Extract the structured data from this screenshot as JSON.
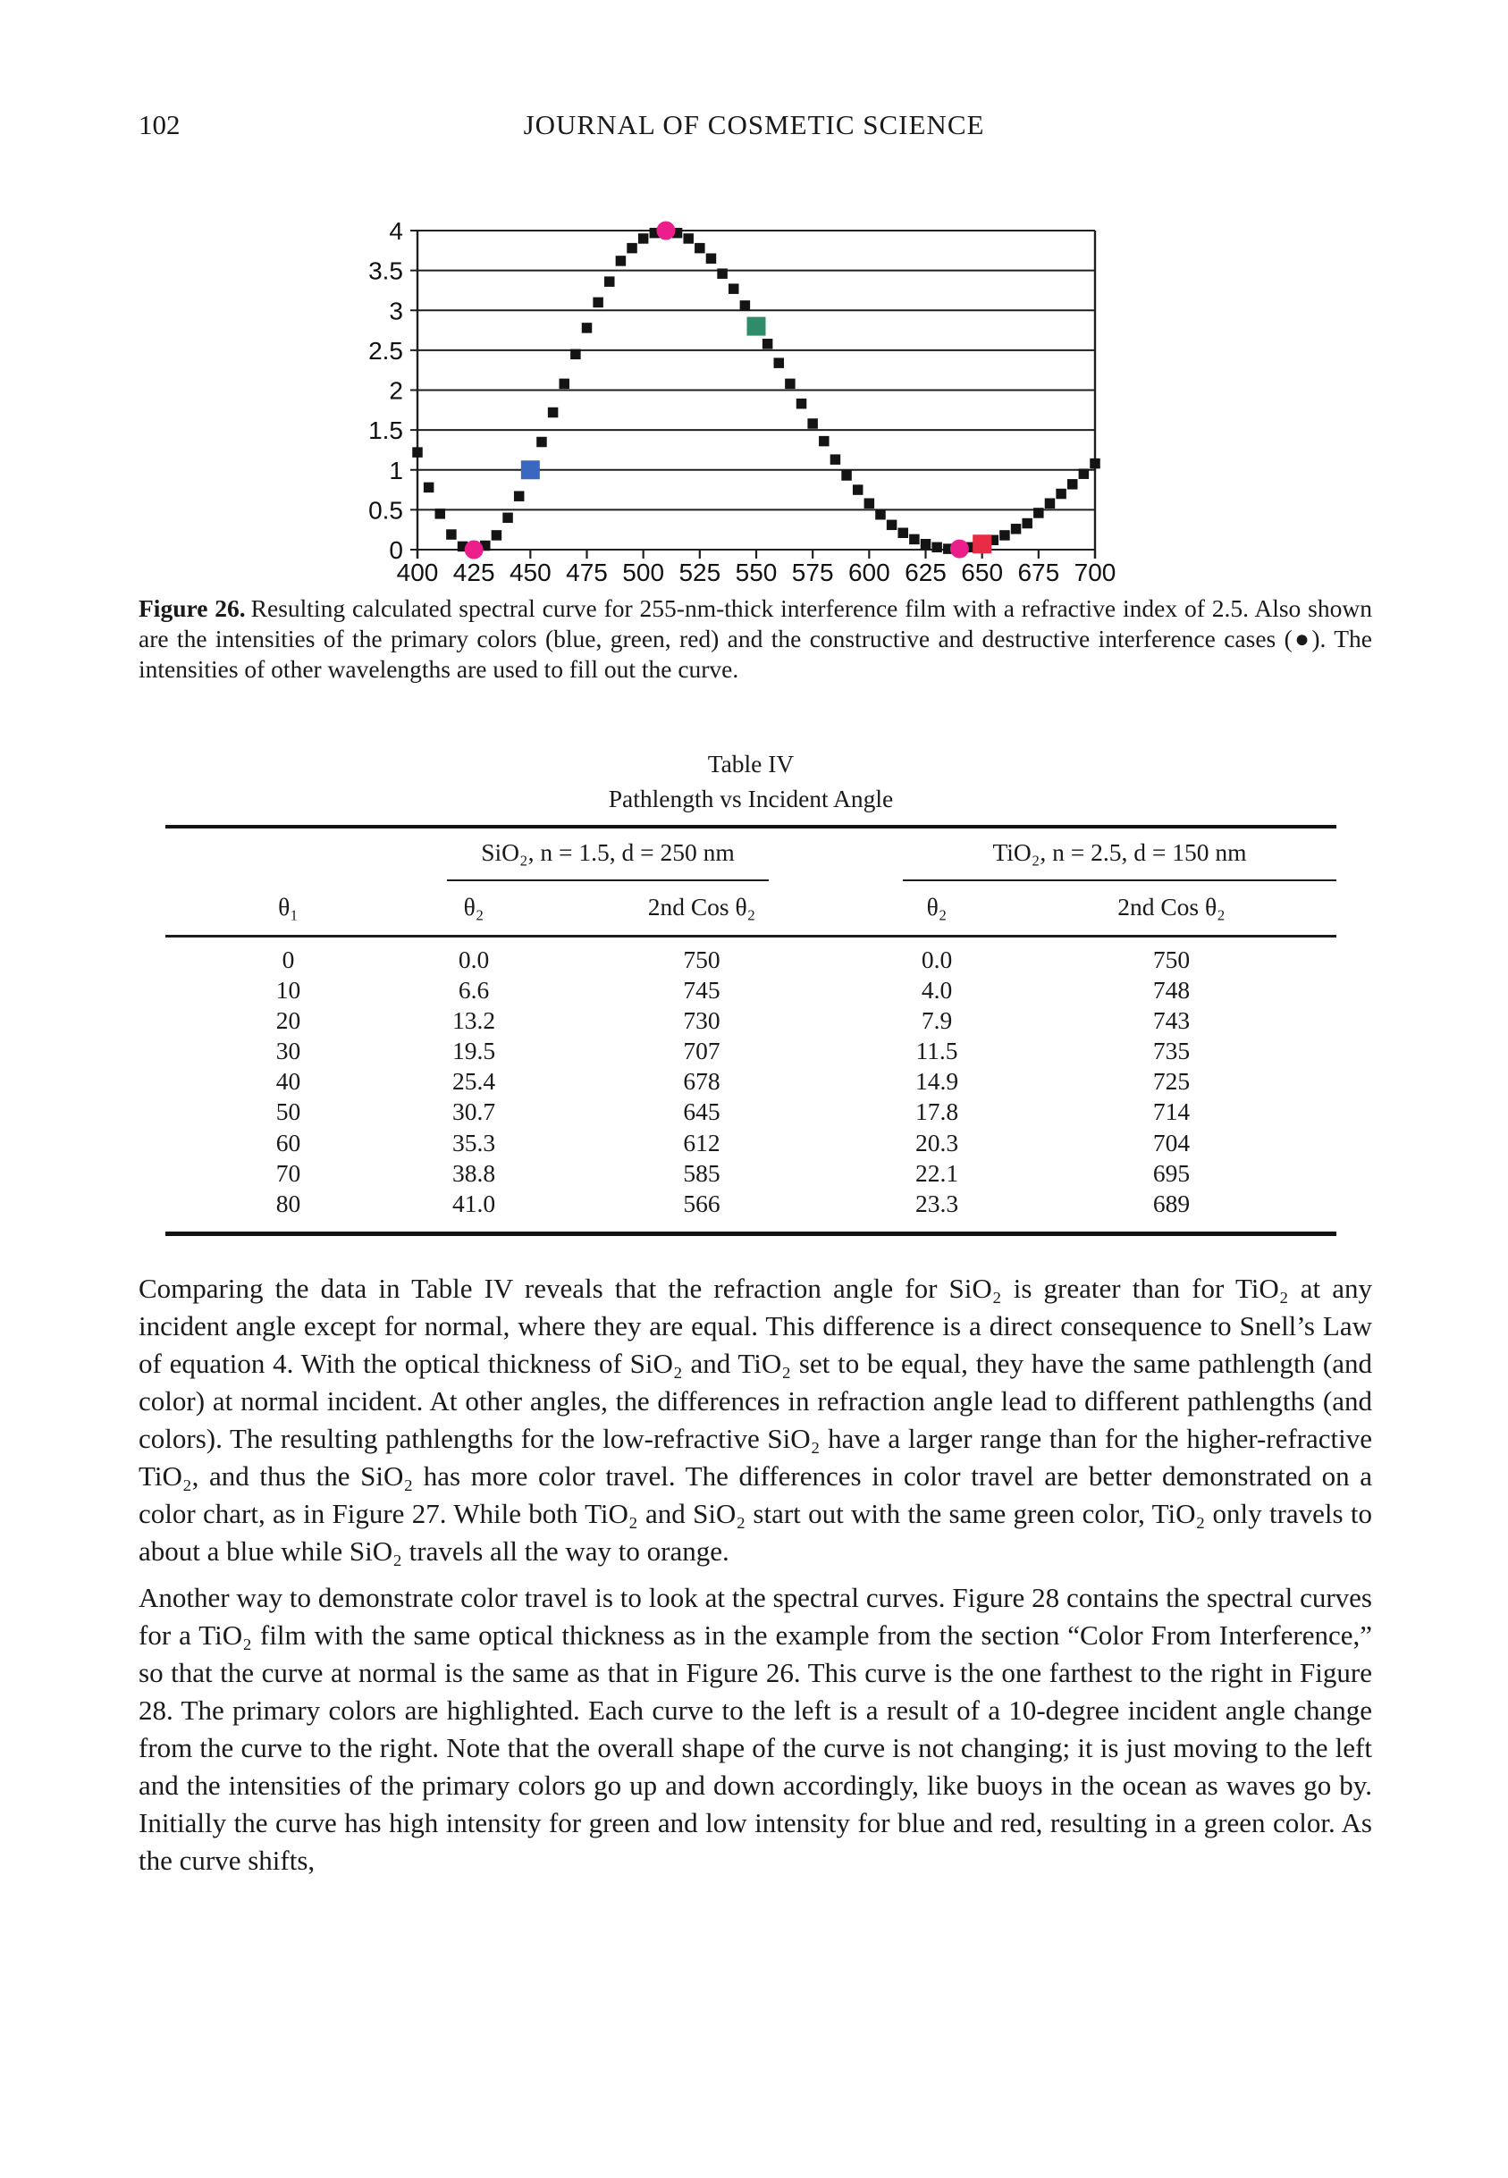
{
  "page": {
    "number": "102",
    "journal": "JOURNAL OF COSMETIC SCIENCE"
  },
  "chart_data": {
    "type": "scatter",
    "title": "",
    "xlabel": "",
    "ylabel": "",
    "xlim": [
      400,
      700
    ],
    "ylim": [
      0,
      4
    ],
    "grid": "horizontal",
    "legend": "none",
    "x_ticks": [
      400,
      425,
      450,
      475,
      500,
      525,
      550,
      575,
      600,
      625,
      650,
      675,
      700
    ],
    "x_tick_labels": [
      "400",
      "425",
      "450",
      "475",
      "500",
      "525",
      "550",
      "575",
      "600",
      "625",
      "650",
      "675",
      "700"
    ],
    "y_ticks": [
      0,
      0.5,
      1,
      1.5,
      2,
      2.5,
      3,
      3.5,
      4
    ],
    "y_tick_labels": [
      "0",
      "0.5",
      "1",
      "1.5",
      "2",
      "2.5",
      "3",
      "3.5",
      "4"
    ],
    "series": [
      {
        "name": "calculated spectral curve (255-nm film, n = 2.5)",
        "marker": "square",
        "color": "#141414",
        "points": [
          [
            400,
            1.22
          ],
          [
            405,
            0.78
          ],
          [
            410,
            0.45
          ],
          [
            415,
            0.19
          ],
          [
            420,
            0.04
          ],
          [
            425,
            0.0
          ],
          [
            430,
            0.05
          ],
          [
            435,
            0.18
          ],
          [
            440,
            0.4
          ],
          [
            445,
            0.67
          ],
          [
            450,
            1.0
          ],
          [
            455,
            1.35
          ],
          [
            460,
            1.72
          ],
          [
            465,
            2.08
          ],
          [
            470,
            2.45
          ],
          [
            475,
            2.78
          ],
          [
            480,
            3.1
          ],
          [
            485,
            3.36
          ],
          [
            490,
            3.62
          ],
          [
            495,
            3.78
          ],
          [
            500,
            3.9
          ],
          [
            505,
            3.97
          ],
          [
            510,
            4.0
          ],
          [
            515,
            3.97
          ],
          [
            520,
            3.9
          ],
          [
            525,
            3.78
          ],
          [
            530,
            3.65
          ],
          [
            535,
            3.46
          ],
          [
            540,
            3.27
          ],
          [
            545,
            3.06
          ],
          [
            550,
            2.8
          ],
          [
            555,
            2.58
          ],
          [
            560,
            2.34
          ],
          [
            565,
            2.08
          ],
          [
            570,
            1.83
          ],
          [
            575,
            1.58
          ],
          [
            580,
            1.36
          ],
          [
            585,
            1.13
          ],
          [
            590,
            0.93
          ],
          [
            595,
            0.75
          ],
          [
            600,
            0.58
          ],
          [
            605,
            0.44
          ],
          [
            610,
            0.31
          ],
          [
            615,
            0.21
          ],
          [
            620,
            0.13
          ],
          [
            625,
            0.07
          ],
          [
            630,
            0.03
          ],
          [
            635,
            0.01
          ],
          [
            640,
            0.01
          ],
          [
            645,
            0.03
          ],
          [
            650,
            0.07
          ],
          [
            655,
            0.12
          ],
          [
            660,
            0.18
          ],
          [
            665,
            0.26
          ],
          [
            670,
            0.33
          ],
          [
            675,
            0.46
          ],
          [
            680,
            0.58
          ],
          [
            685,
            0.7
          ],
          [
            690,
            0.82
          ],
          [
            695,
            0.95
          ],
          [
            700,
            1.08
          ]
        ]
      }
    ],
    "highlights": [
      {
        "x": 425,
        "y": 0.0,
        "marker": "circle",
        "color": "#ec1e8c",
        "role": "destructive interference"
      },
      {
        "x": 450,
        "y": 1.0,
        "marker": "square",
        "color": "#3a67c0",
        "role": "blue primary"
      },
      {
        "x": 510,
        "y": 4.0,
        "marker": "circle",
        "color": "#ec1e8c",
        "role": "constructive interference"
      },
      {
        "x": 550,
        "y": 2.8,
        "marker": "square",
        "color": "#2f8c68",
        "role": "green primary"
      },
      {
        "x": 640,
        "y": 0.01,
        "marker": "circle",
        "color": "#ec1e8c",
        "role": "destructive interference"
      },
      {
        "x": 650,
        "y": 0.07,
        "marker": "square",
        "color": "#e92b45",
        "role": "red primary"
      }
    ]
  },
  "figure": {
    "caption_label": "Figure 26.",
    "caption_text": "Resulting calculated spectral curve for 255-nm-thick interference film with a refractive index of 2.5. Also shown are the intensities of the primary colors (blue, green, red) and the constructive and destructive interference cases (●). The intensities of other wavelengths are used to fill out the curve."
  },
  "table": {
    "title": "Table IV",
    "subtitle": "Pathlength vs Incident Angle",
    "groups": [
      {
        "label": "SiO₂, n = 1.5, d = 250 nm"
      },
      {
        "label": "TiO₂, n = 2.5, d = 150 nm"
      }
    ],
    "columns": [
      "θ₁",
      "θ₂",
      "2nd Cos θ₂",
      "θ₂",
      "2nd Cos θ₂"
    ],
    "rows": [
      [
        "0",
        "0.0",
        "750",
        "0.0",
        "750"
      ],
      [
        "10",
        "6.6",
        "745",
        "4.0",
        "748"
      ],
      [
        "20",
        "13.2",
        "730",
        "7.9",
        "743"
      ],
      [
        "30",
        "19.5",
        "707",
        "11.5",
        "735"
      ],
      [
        "40",
        "25.4",
        "678",
        "14.9",
        "725"
      ],
      [
        "50",
        "30.7",
        "645",
        "17.8",
        "714"
      ],
      [
        "60",
        "35.3",
        "612",
        "20.3",
        "704"
      ],
      [
        "70",
        "38.8",
        "585",
        "22.1",
        "695"
      ],
      [
        "80",
        "41.0",
        "566",
        "23.3",
        "689"
      ]
    ]
  },
  "paragraphs": [
    "Comparing the data in Table IV reveals that the refraction angle for SiO₂ is greater than for TiO₂ at any incident angle except for normal, where they are equal. This difference is a direct consequence to Snell’s Law of equation 4. With the optical thickness of SiO₂ and TiO₂ set to be equal, they have the same pathlength (and color) at normal incident. At other angles, the differences in refraction angle lead to different pathlengths (and colors). The resulting pathlengths for the low-refractive SiO₂ have a larger range than for the higher-refractive TiO₂, and thus the SiO₂ has more color travel. The differences in color travel are better demonstrated on a color chart, as in Figure 27. While both TiO₂ and SiO₂ start out with the same green color, TiO₂ only travels to about a blue while SiO₂ travels all the way to orange.",
    "Another way to demonstrate color travel is to look at the spectral curves. Figure 28 contains the spectral curves for a TiO₂ film with the same optical thickness as in the example from the section “Color From Interference,” so that the curve at normal is the same as that in Figure 26. This curve is the one farthest to the right in Figure 28. The primary colors are highlighted. Each curve to the left is a result of a 10-degree incident angle change from the curve to the right. Note that the overall shape of the curve is not changing; it is just moving to the left and the intensities of the primary colors go up and down accordingly, like buoys in the ocean as waves go by. Initially the curve has high intensity for green and low intensity for blue and red, resulting in a green color. As the curve shifts,"
  ]
}
